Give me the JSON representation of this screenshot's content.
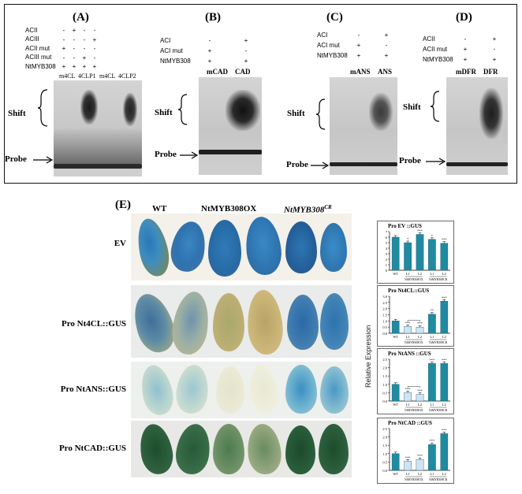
{
  "panelA": {
    "label": "(A)",
    "conds": [
      "ACII",
      "ACIII",
      "ACII mut",
      "ACIII mut",
      "NtMYB308"
    ],
    "signs": [
      [
        "-",
        "+",
        "-",
        "-"
      ],
      [
        "-",
        "-",
        "-",
        "+"
      ],
      [
        "+",
        "-",
        "-",
        "-"
      ],
      [
        "-",
        "-",
        "+",
        "-"
      ],
      [
        "+",
        "+",
        "+",
        "+"
      ]
    ],
    "lanes": [
      "m4CL",
      "4CLP1",
      "m4CL",
      "4CLP2"
    ],
    "shift": "Shift",
    "probe": "Probe"
  },
  "panelB": {
    "label": "(B)",
    "conds": [
      "ACI",
      "ACI mut",
      "NtMYB308"
    ],
    "signs": [
      [
        "-",
        "+"
      ],
      [
        "+",
        "-"
      ],
      [
        "+",
        "+"
      ]
    ],
    "lanes": [
      "mCAD",
      "CAD"
    ],
    "shift": "Shift",
    "probe": "Probe"
  },
  "panelC": {
    "label": "(C)",
    "conds": [
      "ACI",
      "ACI mut",
      "NtMYB308"
    ],
    "signs": [
      [
        "-",
        "+"
      ],
      [
        "+",
        "-"
      ],
      [
        "+",
        "+"
      ]
    ],
    "lanes": [
      "mANS",
      "ANS"
    ],
    "shift": "Shift",
    "probe": "Probe"
  },
  "panelD": {
    "label": "(D)",
    "conds": [
      "ACII",
      "ACII mut",
      "NtMYB308"
    ],
    "signs": [
      [
        "-",
        "+"
      ],
      [
        "+",
        "-"
      ],
      [
        "+",
        "+"
      ]
    ],
    "lanes": [
      "mDFR",
      "DFR"
    ],
    "shift": "Shift",
    "probe": "Probe"
  },
  "panelE": {
    "label": "(E)",
    "col_wt": "WT",
    "col_ox": "NtMYB308OX",
    "col_cr": "NtMYB308",
    "col_cr_sup": "CR",
    "rows": [
      "EV",
      "Pro Nt4CL::GUS",
      "Pro NtANS::GUS",
      "Pro NtCAD::GUS"
    ],
    "ylabel": "Relative Expression"
  },
  "chart_data": [
    {
      "type": "bar",
      "title": "Pro EV ::GUS",
      "categories": [
        "WT",
        "L1",
        "L2",
        "L1",
        "L2"
      ],
      "group_labels": [
        "NtMYB308OX",
        "NtMYB308CR"
      ],
      "values": [
        6.0,
        5.0,
        6.5,
        5.6,
        4.9
      ],
      "ylim": [
        0,
        7
      ],
      "yticks": [
        0,
        1,
        2,
        3,
        4,
        5,
        6,
        7
      ],
      "sig": [
        "",
        "*",
        "***",
        "*",
        "***"
      ],
      "colors": [
        "#1f8aa0",
        "#1f8aa0",
        "#1f8aa0",
        "#1f8aa0",
        "#1f8aa0"
      ]
    },
    {
      "type": "bar",
      "title": "Pro Nt4CL::GUS",
      "categories": [
        "WT",
        "L1",
        "L2",
        "L1",
        "L2"
      ],
      "group_labels": [
        "NtMYB308OX",
        "NtMYB308CR"
      ],
      "values": [
        1.0,
        0.55,
        0.5,
        1.55,
        2.6
      ],
      "ylim": [
        0,
        3
      ],
      "yticks": [
        0,
        0.5,
        1.0,
        1.5,
        2.0,
        2.5,
        3.0
      ],
      "sig": [
        "",
        "***",
        "***",
        "**",
        "***"
      ],
      "colors": [
        "#1f8aa0",
        "#cfe4f2",
        "#cfe4f2",
        "#1f8aa0",
        "#1f8aa0"
      ]
    },
    {
      "type": "bar",
      "title": "Pro NtANS ::GUS",
      "categories": [
        "WT",
        "L1",
        "L2",
        "L1",
        "L2"
      ],
      "group_labels": [
        "NtMYB308OX",
        "NtMYB308CR"
      ],
      "values": [
        1.0,
        0.5,
        0.4,
        2.25,
        2.25
      ],
      "ylim": [
        0,
        2.5
      ],
      "yticks": [
        0,
        0.5,
        1.0,
        1.5,
        2.0,
        2.5
      ],
      "sig": [
        "",
        "***",
        "***",
        "***",
        "***"
      ],
      "colors": [
        "#1f8aa0",
        "#cfe4f2",
        "#cfe4f2",
        "#1f8aa0",
        "#1f8aa0"
      ]
    },
    {
      "type": "bar",
      "title": "Pro NtCAD ::GUS",
      "categories": [
        "WT",
        "L1",
        "L2",
        "L1",
        "L2"
      ],
      "group_labels": [
        "NtMYB308OX",
        "NtMYB308CR"
      ],
      "values": [
        1.0,
        0.55,
        0.65,
        1.55,
        2.2
      ],
      "ylim": [
        0,
        2.5
      ],
      "yticks": [
        0,
        0.5,
        1.0,
        1.5,
        2.0,
        2.5
      ],
      "sig": [
        "",
        "***",
        "***",
        "***",
        "***"
      ],
      "colors": [
        "#1f8aa0",
        "#cfe4f2",
        "#cfe4f2",
        "#1f8aa0",
        "#1f8aa0"
      ]
    }
  ]
}
